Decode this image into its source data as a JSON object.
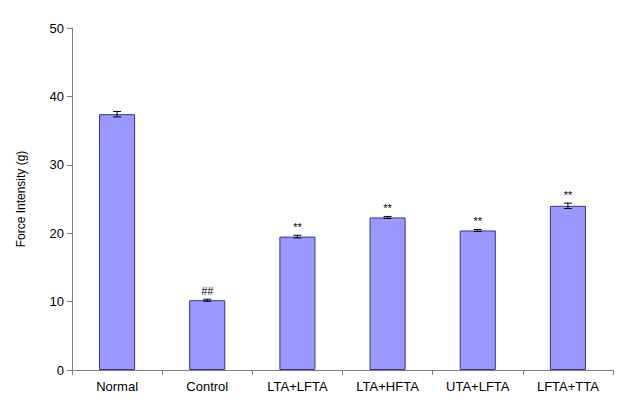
{
  "chart_data": {
    "type": "bar",
    "y_label": "Force Intensity (g)",
    "categories": [
      "Normal",
      "Control",
      "LTA+LFTA",
      "LTA+HFTA",
      "UTA+LFTA",
      "LFTA+TTA"
    ],
    "values": [
      37.4,
      10.2,
      19.5,
      22.3,
      20.4,
      24.0
    ],
    "errors": [
      0.4,
      0.15,
      0.2,
      0.15,
      0.15,
      0.4
    ],
    "annotations": [
      null,
      "##",
      "**",
      "**",
      "**",
      "**"
    ],
    "color": "#9999ff",
    "ylim": [
      0,
      50
    ],
    "yticks": [
      0,
      10,
      20,
      30,
      40,
      50
    ],
    "grid": false
  }
}
